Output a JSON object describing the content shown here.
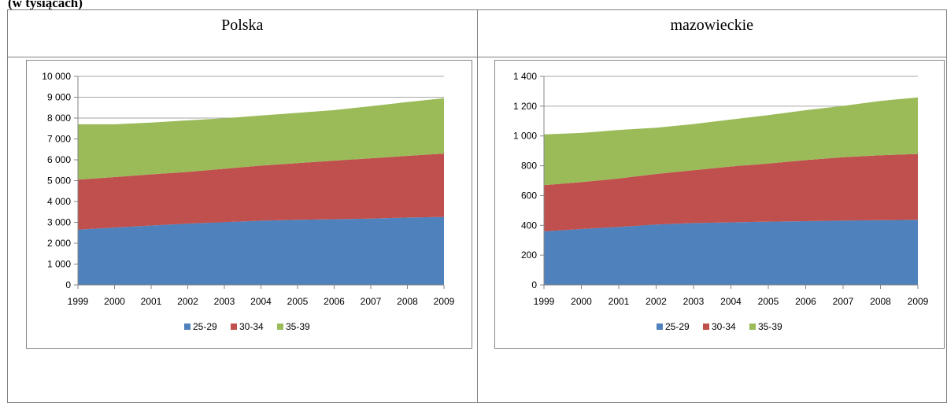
{
  "page": {
    "heading": "(w tysiącach)",
    "columns": [
      "Polska",
      "mazowieckie"
    ]
  },
  "colors": {
    "25-29": "#4f81bd",
    "30-34": "#c0504d",
    "35-39": "#9bbb59",
    "grid": "#a6a6a6",
    "axis": "#868686"
  },
  "chart_data": [
    {
      "type": "area",
      "stacked": true,
      "title": "",
      "region": "Polska",
      "xlabel": "",
      "ylabel": "",
      "x": [
        1999,
        2000,
        2001,
        2002,
        2003,
        2004,
        2005,
        2006,
        2007,
        2008,
        2009
      ],
      "ylim": [
        0,
        10000
      ],
      "yticks": [
        0,
        1000,
        2000,
        3000,
        4000,
        5000,
        6000,
        7000,
        8000,
        9000,
        10000
      ],
      "ytick_labels": [
        "0",
        "1 000",
        "2 000",
        "3 000",
        "4 000",
        "5 000",
        "6 000",
        "7 000",
        "8 000",
        "9 000",
        "10 000"
      ],
      "grid": true,
      "legend": "bottom",
      "series": [
        {
          "name": "25-29",
          "values": [
            2650,
            2750,
            2850,
            2940,
            3010,
            3080,
            3120,
            3150,
            3180,
            3230,
            3260
          ]
        },
        {
          "name": "30-34",
          "values": [
            2400,
            2420,
            2450,
            2480,
            2560,
            2640,
            2720,
            2810,
            2890,
            2960,
            3040
          ]
        },
        {
          "name": "35-39",
          "values": [
            2650,
            2530,
            2480,
            2470,
            2420,
            2400,
            2410,
            2420,
            2500,
            2580,
            2650
          ]
        }
      ]
    },
    {
      "type": "area",
      "stacked": true,
      "title": "",
      "region": "mazowieckie",
      "xlabel": "",
      "ylabel": "",
      "x": [
        1999,
        2000,
        2001,
        2002,
        2003,
        2004,
        2005,
        2006,
        2007,
        2008,
        2009
      ],
      "ylim": [
        0,
        1400
      ],
      "yticks": [
        0,
        200,
        400,
        600,
        800,
        1000,
        1200,
        1400
      ],
      "ytick_labels": [
        "0",
        "200",
        "400",
        "600",
        "800",
        "1 000",
        "1 200",
        "1 400"
      ],
      "grid": true,
      "legend": "bottom",
      "series": [
        {
          "name": "25-29",
          "values": [
            360,
            375,
            390,
            405,
            415,
            420,
            425,
            428,
            432,
            435,
            437
          ]
        },
        {
          "name": "30-34",
          "values": [
            310,
            315,
            325,
            340,
            355,
            375,
            390,
            410,
            425,
            435,
            442
          ]
        },
        {
          "name": "35-39",
          "values": [
            340,
            330,
            325,
            310,
            310,
            315,
            325,
            335,
            345,
            365,
            380
          ]
        }
      ]
    }
  ]
}
